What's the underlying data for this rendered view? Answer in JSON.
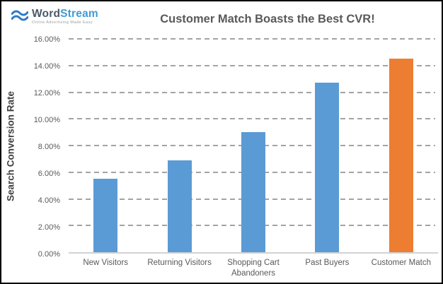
{
  "logo": {
    "brand_word": "Word",
    "brand_stream": "Stream",
    "tagline": "Online Advertising Made Easy"
  },
  "chart_data": {
    "type": "bar",
    "title": "Customer Match Boasts the Best CVR!",
    "xlabel": "",
    "ylabel": "Search Conversion Rate",
    "categories": [
      "New Visitors",
      "Returning Visitors",
      "Shopping Cart Abandoners",
      "Past Buyers",
      "Customer Match"
    ],
    "values": [
      5.5,
      6.9,
      9.0,
      12.7,
      14.5
    ],
    "unit": "%",
    "ylim": [
      0,
      16
    ],
    "ytick_step": 2,
    "ytick_labels": [
      "0.00%",
      "2.00%",
      "4.00%",
      "6.00%",
      "8.00%",
      "10.00%",
      "12.00%",
      "14.00%",
      "16.00%"
    ],
    "bar_colors": [
      "#5B9BD5",
      "#5B9BD5",
      "#5B9BD5",
      "#5B9BD5",
      "#ED7D31"
    ],
    "grid": "horizontal-dashed",
    "legend": "none",
    "colors": {
      "blue_bar": "#5B9BD5",
      "orange_bar": "#ED7D31",
      "gridline": "#A3A3A3",
      "axis_line": "#D2D2D2",
      "title_text": "#595959",
      "tick_text": "#595959",
      "logo_word": "#4A5A68",
      "logo_stream": "#3E9BD6",
      "logo_wave": "#2E79C7"
    }
  }
}
